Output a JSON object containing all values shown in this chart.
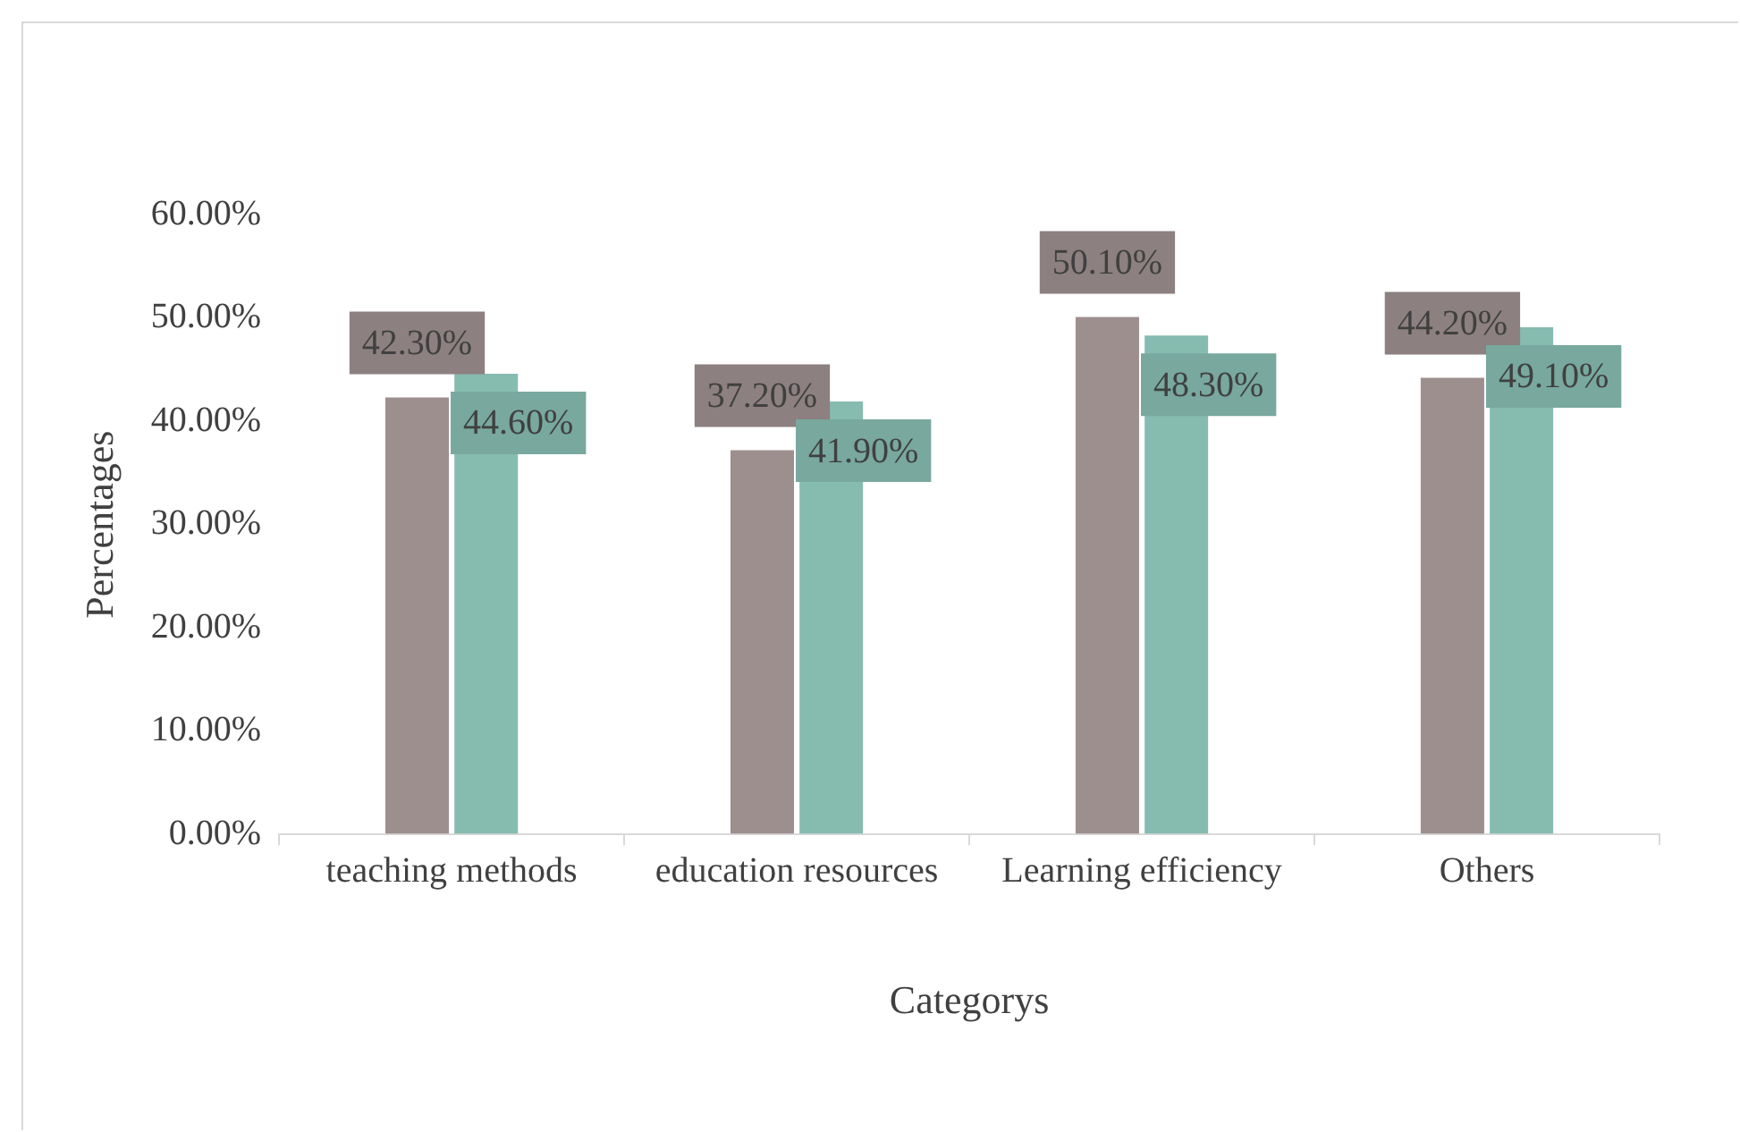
{
  "chart_data": {
    "type": "bar",
    "xlabel": "Categorys",
    "ylabel": "Percentages",
    "categories": [
      "teaching methods",
      "education resources",
      "Learning efficiency",
      "Others"
    ],
    "series": [
      {
        "color": "#9e8f8f",
        "values": [
          42.3,
          37.2,
          50.1,
          44.2
        ],
        "value_labels": [
          "42.30%",
          "37.20%",
          "50.10%",
          "44.20%"
        ]
      },
      {
        "color": "#86bbb0",
        "values": [
          44.6,
          41.9,
          48.3,
          49.1
        ],
        "value_labels": [
          "44.60%",
          "41.90%",
          "48.30%",
          "49.10%"
        ]
      }
    ],
    "ylim": [
      0,
      60
    ],
    "yticks": [
      {
        "value": 0,
        "label": "0.00%"
      },
      {
        "value": 10,
        "label": "10.00%"
      },
      {
        "value": 20,
        "label": "20.00%"
      },
      {
        "value": 30,
        "label": "30.00%"
      },
      {
        "value": 40,
        "label": "40.00%"
      },
      {
        "value": 50,
        "label": "50.00%"
      },
      {
        "value": 60,
        "label": "60.00%"
      }
    ],
    "grid": false,
    "legend": false
  }
}
